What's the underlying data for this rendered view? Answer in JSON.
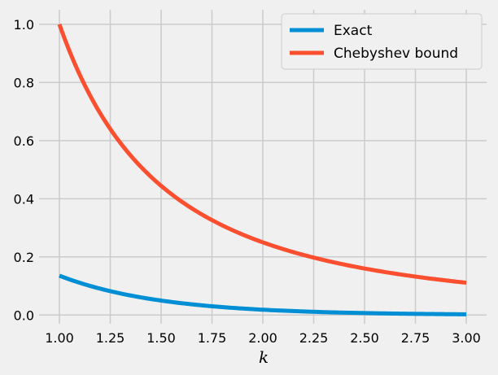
{
  "chart_data": {
    "type": "line",
    "title": "",
    "xlabel": "k",
    "ylabel": "",
    "xlim": [
      0.9,
      3.1
    ],
    "ylim": [
      -0.03,
      1.05
    ],
    "xticks": [
      1.0,
      1.25,
      1.5,
      1.75,
      2.0,
      2.25,
      2.5,
      2.75,
      3.0
    ],
    "xtick_labels": [
      "1.00",
      "1.25",
      "1.50",
      "1.75",
      "2.00",
      "2.25",
      "2.50",
      "2.75",
      "3.00"
    ],
    "yticks": [
      0.0,
      0.2,
      0.4,
      0.6,
      0.8,
      1.0
    ],
    "ytick_labels": [
      "0.0",
      "0.2",
      "0.4",
      "0.6",
      "0.8",
      "1.0"
    ],
    "grid": true,
    "legend_position": "top-right",
    "x": [
      1.0,
      1.25,
      1.5,
      1.75,
      2.0,
      2.25,
      2.5,
      2.75,
      3.0
    ],
    "series": [
      {
        "name": "Exact",
        "color": "#008fd5",
        "values": [
          0.135,
          0.105,
          0.082,
          0.065,
          0.05,
          0.04,
          0.032,
          0.025,
          0.019
        ]
      },
      {
        "name": "Chebyshev bound",
        "color": "#fc4f30",
        "values": [
          1.0,
          0.64,
          0.444,
          0.327,
          0.25,
          0.198,
          0.16,
          0.132,
          0.111
        ]
      }
    ]
  }
}
